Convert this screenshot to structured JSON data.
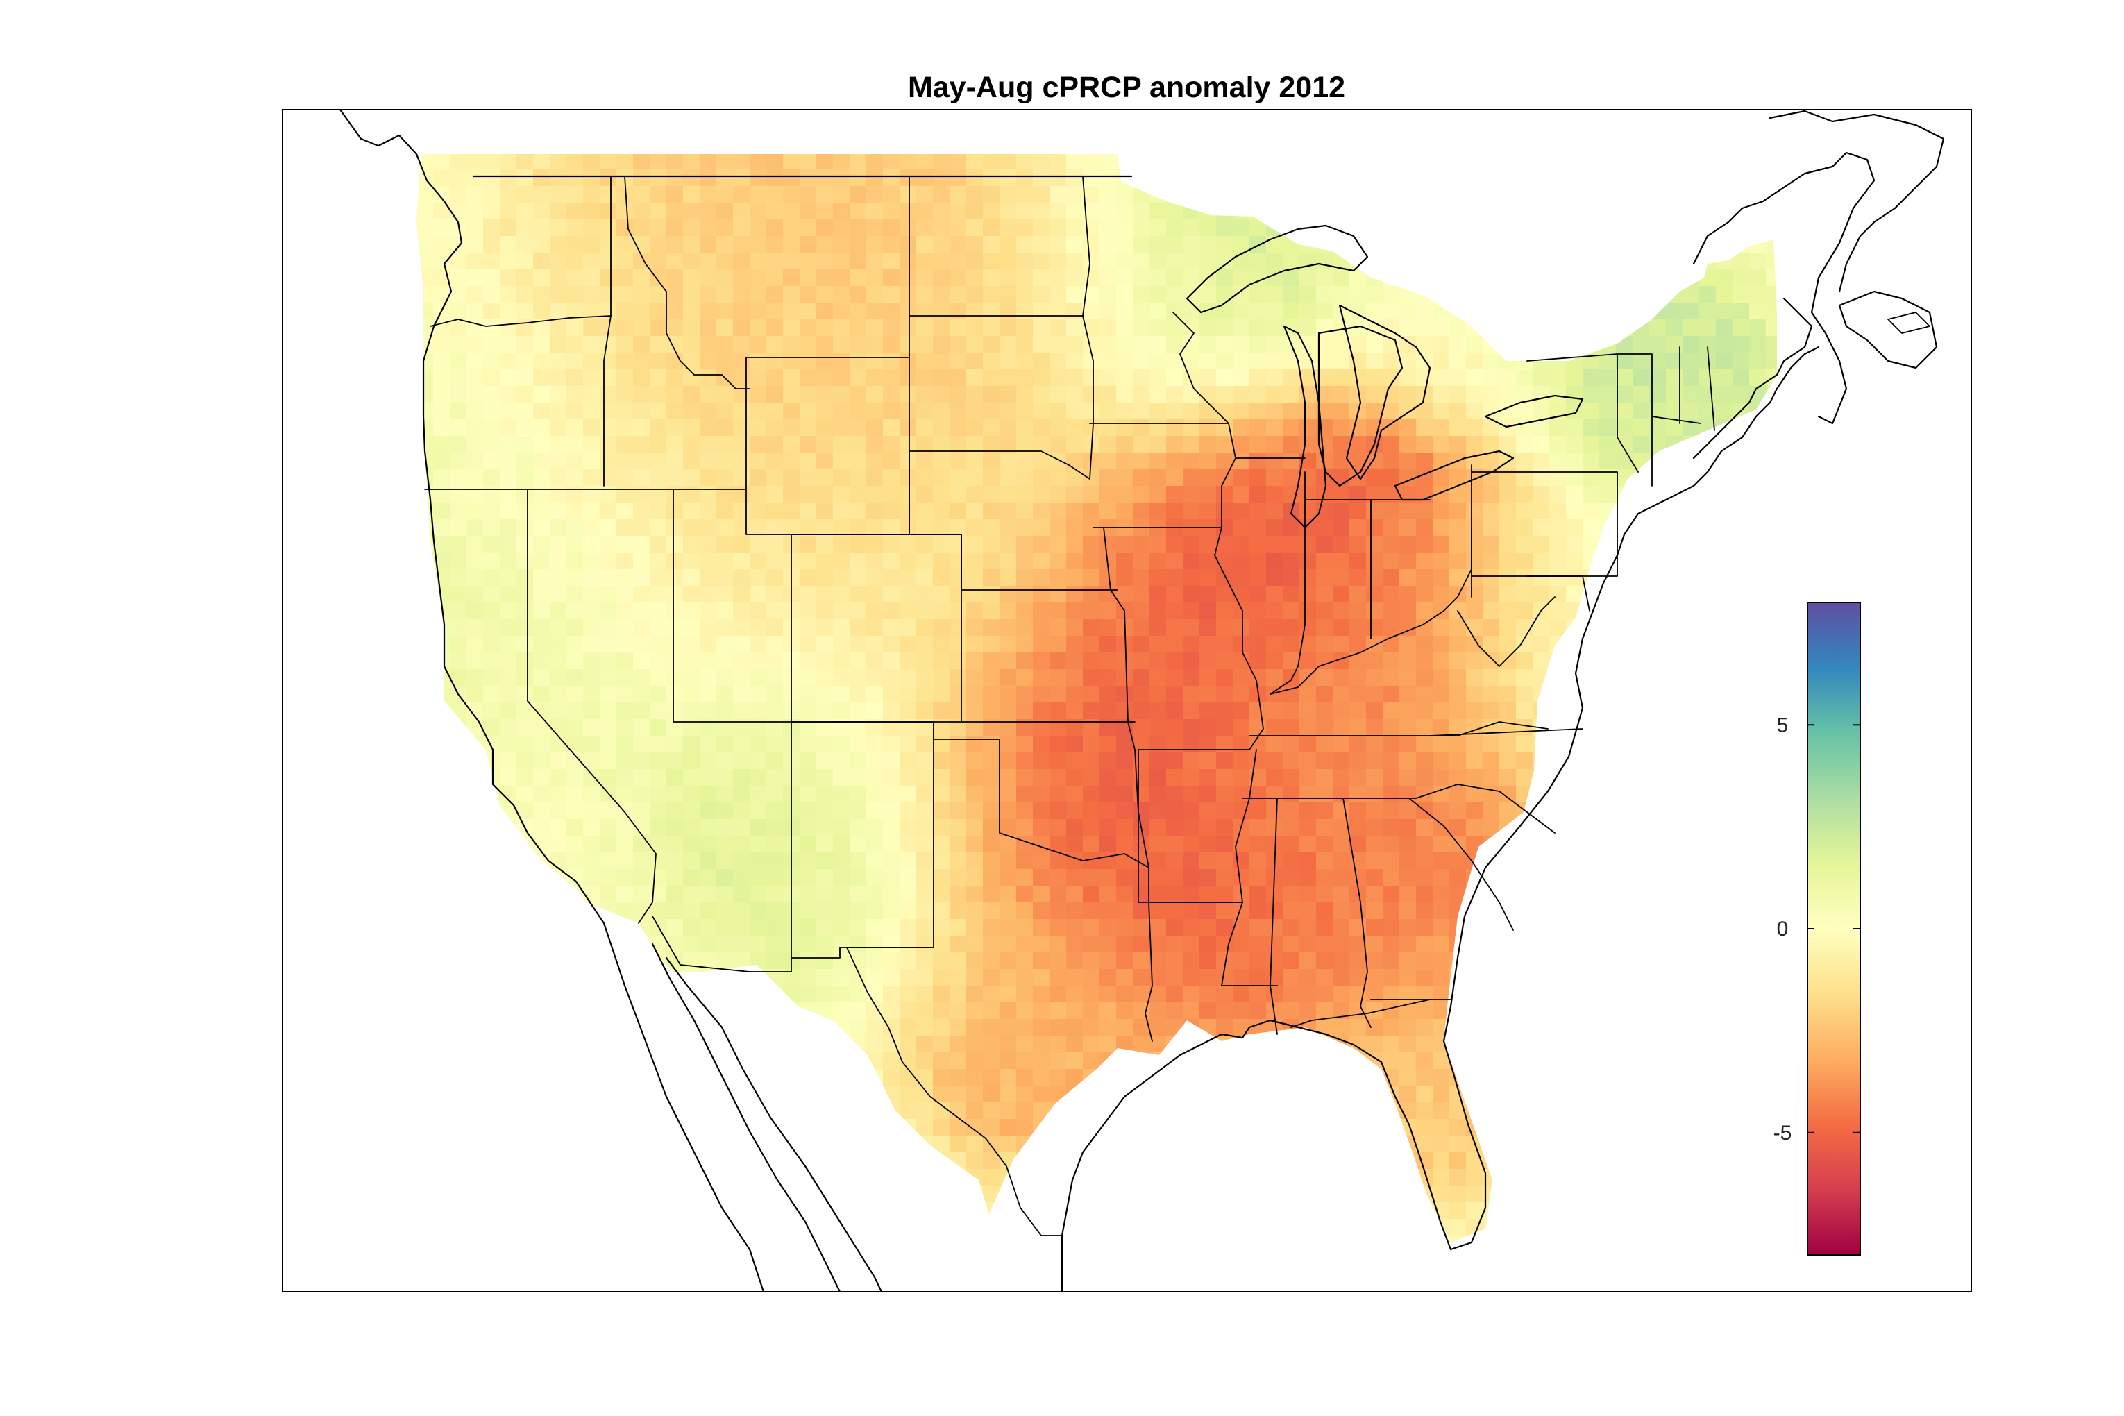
{
  "title": "May-Aug cPRCP anomaly 2012",
  "colorbar": {
    "ticks": [
      {
        "value": 5,
        "label": "5"
      },
      {
        "value": 0,
        "label": "0"
      },
      {
        "value": -5,
        "label": "-5"
      }
    ],
    "range": [
      -8,
      8
    ],
    "colormap": "spectral",
    "stops": [
      "#9e0142",
      "#d53e4f",
      "#f46d43",
      "#fdae61",
      "#fee08b",
      "#ffffbf",
      "#e6f598",
      "#abdda4",
      "#66c2a5",
      "#3288bd",
      "#5e4fa2"
    ]
  },
  "chart_data": {
    "type": "heatmap",
    "title": "May-Aug cPRCP anomaly 2012",
    "region": "contiguous United States",
    "variable_range": [
      -8,
      8
    ],
    "pattern": [
      {
        "region": "West Coast / Great Basin",
        "anomaly": -0.5
      },
      {
        "region": "Northern Rockies / Montana",
        "anomaly": -2.5
      },
      {
        "region": "Wyoming",
        "anomaly": -2.0
      },
      {
        "region": "Dakotas",
        "anomaly": -2.0
      },
      {
        "region": "Four Corners / New Mexico",
        "anomaly": 1.5
      },
      {
        "region": "Minnesota / Upper Great Lakes",
        "anomaly": 2.0
      },
      {
        "region": "Iowa / Illinois / Indiana",
        "anomaly": -5.5
      },
      {
        "region": "Missouri / Arkansas",
        "anomaly": -5.0
      },
      {
        "region": "Oklahoma / East Texas",
        "anomaly": -5.5
      },
      {
        "region": "Louisiana / Mississippi",
        "anomaly": -5.0
      },
      {
        "region": "Southeast / Georgia",
        "anomaly": -4.0
      },
      {
        "region": "Ohio Valley",
        "anomaly": -4.0
      },
      {
        "region": "Mid-Atlantic",
        "anomaly": 0.5
      },
      {
        "region": "New England",
        "anomaly": 2.0
      },
      {
        "region": "South Texas",
        "anomaly": -1.5
      },
      {
        "region": "Florida",
        "anomaly": -2.0
      }
    ]
  }
}
